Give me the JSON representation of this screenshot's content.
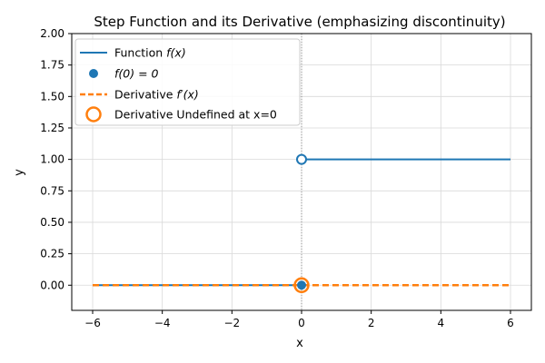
{
  "chart_data": {
    "type": "line",
    "title": "Step Function and its Derivative (emphasizing discontinuity)",
    "xlabel": "x",
    "ylabel": "y",
    "xlim": [
      -6.6,
      6.6
    ],
    "ylim": [
      -0.2,
      2.0
    ],
    "xticks": [
      -6,
      -4,
      -2,
      0,
      2,
      4,
      6
    ],
    "xtick_labels": [
      "−6",
      "−4",
      "−2",
      "0",
      "2",
      "4",
      "6"
    ],
    "yticks": [
      0.0,
      0.25,
      0.5,
      0.75,
      1.0,
      1.25,
      1.5,
      1.75,
      2.0
    ],
    "ytick_labels": [
      "0.00",
      "0.25",
      "0.50",
      "0.75",
      "1.00",
      "1.25",
      "1.50",
      "1.75",
      "2.00"
    ],
    "grid": true,
    "legend_position": "top-left",
    "colors": {
      "function": "#1f77b4",
      "derivative": "#ff7f0e",
      "vline": "#808080"
    },
    "series": [
      {
        "name": "Function f(x)",
        "style": "solid",
        "segments": [
          {
            "x": [
              -6,
              0
            ],
            "y": [
              0,
              0
            ]
          },
          {
            "x": [
              0,
              6
            ],
            "y": [
              1,
              1
            ]
          }
        ]
      },
      {
        "name": "f(0) = 0",
        "style": "marker",
        "x": [
          0
        ],
        "y": [
          0
        ]
      },
      {
        "name": "Derivative f′(x)",
        "style": "dashed",
        "segments": [
          {
            "x": [
              -6,
              6
            ],
            "y": [
              0,
              0
            ]
          }
        ]
      },
      {
        "name": "Derivative Undefined at x=0",
        "style": "open-marker",
        "x": [
          0
        ],
        "y": [
          0
        ]
      }
    ],
    "open_point": {
      "x": 0,
      "y": 1
    },
    "vline_x": 0,
    "legend": [
      {
        "prefix": "Function ",
        "math": "f(x)",
        "suffix": ""
      },
      {
        "prefix": "",
        "math": "f(0) = 0",
        "suffix": ""
      },
      {
        "prefix": "Derivative ",
        "math": "f′(x)",
        "suffix": ""
      },
      {
        "prefix": "Derivative Undefined at x=0",
        "math": "",
        "suffix": ""
      }
    ]
  }
}
